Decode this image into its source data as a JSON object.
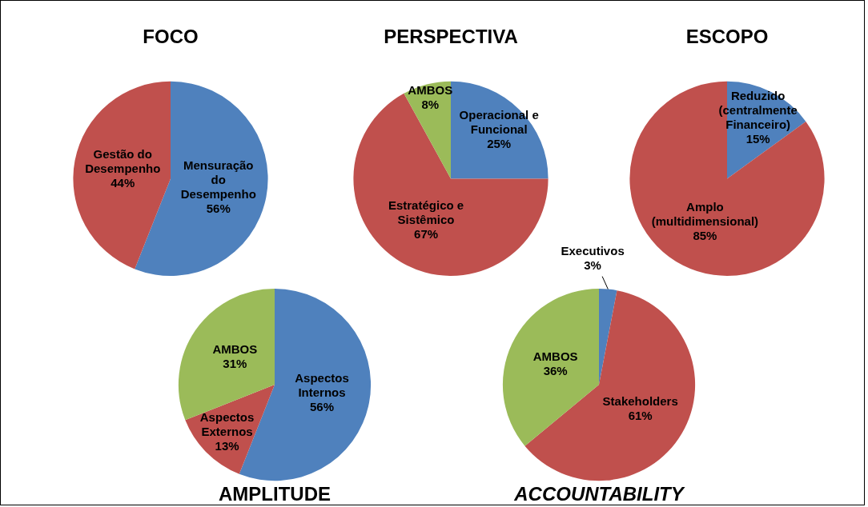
{
  "chart_data": [
    {
      "type": "pie",
      "title": "FOCO",
      "categories": [
        "Mensuração do Desempenho",
        "Gestão do Desempenho"
      ],
      "values": [
        56,
        44
      ],
      "colors": [
        "#4f81bd",
        "#c0504d"
      ],
      "value_labels": [
        "56%",
        "44%"
      ]
    },
    {
      "type": "pie",
      "title": "PERSPECTIVA",
      "categories": [
        "Operacional e Funcional",
        "Estratégico e Sistêmico",
        "AMBOS"
      ],
      "values": [
        25,
        67,
        8
      ],
      "colors": [
        "#4f81bd",
        "#c0504d",
        "#9bbb59"
      ],
      "value_labels": [
        "25%",
        "67%",
        "8%"
      ]
    },
    {
      "type": "pie",
      "title": "ESCOPO",
      "categories": [
        "Reduzido (centralmente Financeiro)",
        "Amplo (multidimensional)"
      ],
      "values": [
        15,
        85
      ],
      "colors": [
        "#4f81bd",
        "#c0504d"
      ],
      "value_labels": [
        "15%",
        "85%"
      ]
    },
    {
      "type": "pie",
      "title": "AMPLITUDE",
      "categories": [
        "Aspectos Internos",
        "Aspectos Externos",
        "AMBOS"
      ],
      "values": [
        56,
        13,
        31
      ],
      "colors": [
        "#4f81bd",
        "#c0504d",
        "#9bbb59"
      ],
      "value_labels": [
        "56%",
        "13%",
        "31%"
      ]
    },
    {
      "type": "pie",
      "title": "ACCOUNTABILITY",
      "categories": [
        "Executivos",
        "Stakeholders",
        "AMBOS"
      ],
      "values": [
        3,
        61,
        36
      ],
      "colors": [
        "#4f81bd",
        "#c0504d",
        "#9bbb59"
      ],
      "value_labels": [
        "3%",
        "61%",
        "36%"
      ]
    }
  ]
}
